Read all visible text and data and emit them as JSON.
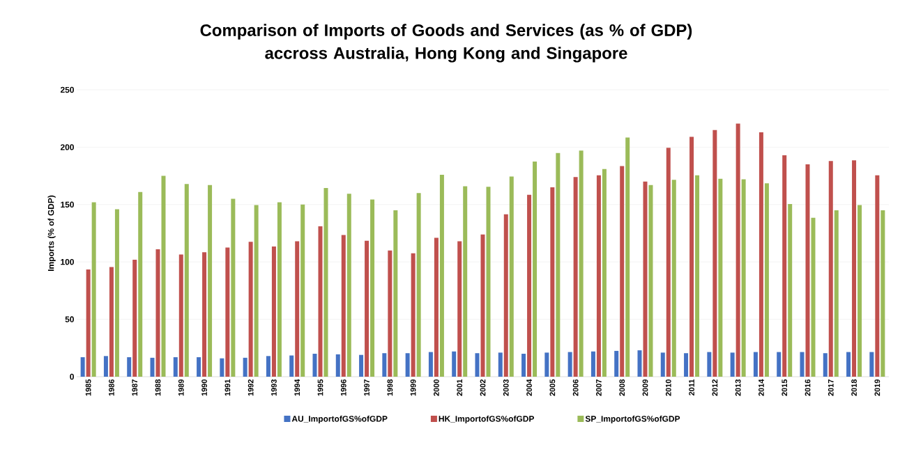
{
  "chart_data": {
    "type": "bar",
    "title": "Comparison of Imports of Goods and Services (as % of GDP)\naccross Australia, Hong Kong and Singapore",
    "ylabel": "Imports (% of GDP)",
    "categories": [
      "1985",
      "1986",
      "1987",
      "1988",
      "1989",
      "1990",
      "1991",
      "1992",
      "1993",
      "1994",
      "1995",
      "1996",
      "1997",
      "1998",
      "1999",
      "2000",
      "2001",
      "2002",
      "2003",
      "2004",
      "2005",
      "2006",
      "2007",
      "2008",
      "2009",
      "2010",
      "2011",
      "2012",
      "2013",
      "2014",
      "2015",
      "2016",
      "2017",
      "2018",
      "2019"
    ],
    "series": [
      {
        "name": "AU_ImportofGS%ofGDP",
        "color": "#4472c4",
        "values": [
          17,
          18,
          17,
          16.5,
          17,
          17,
          16,
          16.5,
          18,
          18.5,
          20,
          19.5,
          19,
          20.5,
          20.5,
          21.5,
          22,
          20.5,
          21,
          20,
          21,
          21.5,
          22,
          22.5,
          23,
          21,
          20.5,
          21.5,
          21,
          21.5,
          21.5,
          21.5,
          20.5,
          21.5,
          21.5
        ]
      },
      {
        "name": "HK_ImportofGS%ofGDP",
        "color": "#c0504d",
        "values": [
          93.5,
          95.5,
          102,
          111,
          106.5,
          108.5,
          112.5,
          117.5,
          113.5,
          118,
          131,
          123.5,
          118.5,
          110,
          107.5,
          121,
          118,
          124,
          141.5,
          158.5,
          165,
          174,
          175.5,
          183.5,
          170,
          199.5,
          209,
          215,
          220.5,
          213,
          193,
          185,
          188,
          188.5,
          175.5
        ]
      },
      {
        "name": "SP_ImportofGS%ofGDP",
        "color": "#9bbb59",
        "values": [
          152,
          146,
          161,
          175,
          168,
          167,
          155,
          149.5,
          152,
          150,
          164.5,
          159.5,
          154.5,
          145,
          160,
          176,
          166,
          165.5,
          174.5,
          187.5,
          195,
          197,
          181,
          208.5,
          167,
          171.5,
          175.5,
          172.5,
          172,
          168.5,
          150.5,
          138.5,
          145,
          149.5,
          145
        ]
      }
    ],
    "ylim": [
      0,
      250
    ],
    "yticks": [
      0,
      50,
      100,
      150,
      200,
      250
    ],
    "grid": "y",
    "legend": "bottom"
  }
}
